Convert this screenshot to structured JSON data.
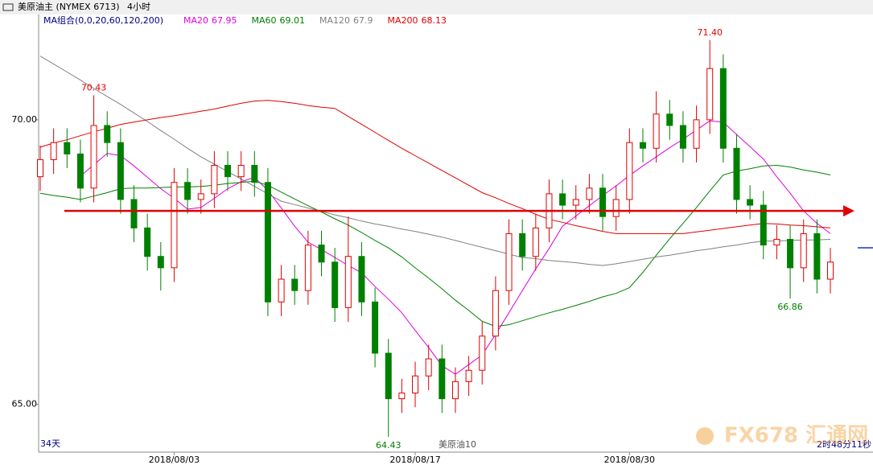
{
  "chart_data": {
    "type": "candlestick",
    "title": "美原油主 (NYMEX 6713)",
    "period": "4小时",
    "ma_group": "MA组合(0,0,20,60,120,200)",
    "days": "34天",
    "footer_name": "美原油10",
    "countdown": "2时48分11秒",
    "watermark": "FX678 汇通网",
    "ylim": [
      64.19,
      71.85
    ],
    "yticks": [
      {
        "value": 65,
        "label": "65.00"
      },
      {
        "value": 70,
        "label": "70.00"
      }
    ],
    "grid": false,
    "up_color": "#e00000",
    "down_color": "#008000",
    "categories": [
      null,
      null,
      null,
      null,
      null,
      null,
      null,
      null,
      null,
      null,
      "2018/08/03",
      null,
      null,
      null,
      null,
      null,
      null,
      null,
      null,
      null,
      null,
      null,
      null,
      null,
      null,
      null,
      null,
      null,
      "2018/08/17",
      null,
      null,
      null,
      null,
      null,
      null,
      null,
      null,
      null,
      null,
      null,
      null,
      null,
      null,
      null,
      "2018/08/30",
      null,
      null,
      null,
      null,
      null,
      null,
      null,
      null,
      null,
      null,
      null,
      null,
      null,
      null,
      null
    ],
    "open": [
      69.0,
      69.3,
      69.6,
      69.4,
      68.8,
      69.9,
      69.6,
      68.6,
      68.1,
      67.6,
      67.4,
      68.9,
      68.6,
      68.7,
      69.2,
      69.0,
      69.2,
      68.9,
      66.8,
      67.2,
      67.0,
      67.8,
      67.5,
      66.7,
      67.6,
      66.8,
      65.9,
      65.1,
      65.2,
      65.5,
      65.8,
      65.1,
      65.4,
      65.6,
      66.2,
      67.0,
      68.0,
      67.6,
      68.1,
      68.7,
      68.5,
      68.6,
      68.8,
      68.3,
      68.6,
      69.6,
      69.5,
      70.1,
      69.9,
      69.5,
      70.0,
      70.9,
      69.5,
      68.6,
      68.5,
      67.8,
      67.9,
      67.4,
      68.0,
      67.2
    ],
    "high": [
      69.55,
      69.85,
      69.85,
      69.65,
      70.43,
      70.15,
      69.85,
      68.85,
      68.35,
      67.85,
      69.15,
      69.15,
      68.95,
      69.45,
      69.45,
      69.45,
      69.45,
      69.15,
      67.45,
      67.45,
      68.05,
      68.05,
      67.75,
      68.3,
      67.85,
      67.05,
      66.15,
      65.45,
      65.75,
      66.05,
      66.05,
      65.65,
      65.85,
      66.45,
      67.25,
      68.25,
      68.25,
      68.35,
      68.95,
      68.95,
      68.85,
      69.05,
      69.05,
      68.85,
      69.85,
      69.85,
      70.5,
      70.35,
      70.15,
      70.25,
      71.4,
      71.15,
      69.75,
      68.85,
      68.75,
      68.15,
      68.15,
      68.25,
      68.25,
      67.75
    ],
    "low": [
      68.75,
      69.05,
      69.15,
      68.55,
      68.55,
      69.35,
      68.35,
      67.85,
      67.35,
      67.0,
      67.15,
      68.35,
      68.35,
      68.45,
      68.75,
      68.75,
      68.65,
      66.55,
      66.55,
      66.75,
      66.75,
      67.25,
      66.45,
      66.45,
      66.55,
      65.65,
      64.43,
      64.85,
      64.95,
      65.25,
      64.85,
      64.85,
      65.15,
      65.35,
      65.95,
      66.75,
      67.35,
      67.35,
      67.85,
      68.25,
      68.25,
      68.35,
      68.05,
      68.05,
      68.35,
      69.25,
      69.25,
      69.65,
      69.25,
      69.25,
      69.75,
      69.25,
      68.35,
      68.25,
      67.55,
      67.55,
      66.86,
      67.15,
      66.95,
      66.95
    ],
    "close": [
      69.3,
      69.6,
      69.4,
      68.8,
      69.9,
      69.6,
      68.6,
      68.1,
      67.6,
      67.4,
      68.9,
      68.6,
      68.7,
      69.2,
      69.0,
      69.2,
      68.9,
      66.8,
      67.2,
      67.0,
      67.8,
      67.5,
      66.7,
      67.6,
      66.8,
      65.9,
      65.1,
      65.2,
      65.5,
      65.8,
      65.1,
      65.4,
      65.6,
      66.2,
      67.0,
      68.0,
      67.6,
      68.1,
      68.7,
      68.5,
      68.6,
      68.8,
      68.3,
      68.6,
      69.6,
      69.5,
      70.1,
      69.9,
      69.5,
      70.0,
      70.9,
      69.5,
      68.6,
      68.5,
      67.8,
      67.9,
      67.4,
      68.0,
      67.2,
      67.5
    ],
    "high_labels": [
      null,
      null,
      null,
      null,
      "70.43",
      null,
      null,
      null,
      null,
      null,
      null,
      null,
      null,
      null,
      null,
      null,
      null,
      null,
      null,
      null,
      null,
      null,
      null,
      null,
      null,
      null,
      null,
      null,
      null,
      null,
      null,
      null,
      null,
      null,
      null,
      null,
      null,
      null,
      null,
      null,
      null,
      null,
      null,
      null,
      null,
      null,
      null,
      null,
      null,
      null,
      "71.40",
      null,
      null,
      null,
      null,
      null,
      null,
      null,
      null,
      null
    ],
    "low_labels": [
      null,
      null,
      null,
      null,
      null,
      null,
      null,
      null,
      null,
      null,
      null,
      null,
      null,
      null,
      null,
      null,
      null,
      null,
      null,
      null,
      null,
      null,
      null,
      null,
      null,
      null,
      "64.43",
      null,
      null,
      null,
      null,
      null,
      null,
      null,
      null,
      null,
      null,
      null,
      null,
      null,
      null,
      null,
      null,
      null,
      null,
      null,
      null,
      null,
      null,
      null,
      null,
      null,
      null,
      null,
      null,
      null,
      "66.86",
      null,
      null,
      null
    ],
    "reference_line": {
      "value": 68.4,
      "color": "#e00000"
    },
    "series": [
      {
        "name": "MA20",
        "current": 67.95,
        "color": "#e000e0",
        "values": [
          null,
          null,
          null,
          69.01,
          69.21,
          69.41,
          69.37,
          69.19,
          68.99,
          68.79,
          68.62,
          68.43,
          68.46,
          68.62,
          68.79,
          68.91,
          68.99,
          68.76,
          68.45,
          68.13,
          67.85,
          67.72,
          67.58,
          67.44,
          67.31,
          67.07,
          66.85,
          66.61,
          66.3,
          66.0,
          65.68,
          65.53,
          65.7,
          65.87,
          66.23,
          66.61,
          67.0,
          67.38,
          67.74,
          68.13,
          68.31,
          68.49,
          68.67,
          68.84,
          69.02,
          69.19,
          69.35,
          69.51,
          69.66,
          69.82,
          69.98,
          69.96,
          69.74,
          69.53,
          69.31,
          69.0,
          68.71,
          68.4,
          68.18,
          68.0
        ]
      },
      {
        "name": "MA60",
        "current": 69.01,
        "color": "#008000",
        "values": [
          68.71,
          68.67,
          68.64,
          68.6,
          68.66,
          68.72,
          68.79,
          68.8,
          68.8,
          68.81,
          68.82,
          68.82,
          68.83,
          68.85,
          68.88,
          68.9,
          68.92,
          68.85,
          68.73,
          68.61,
          68.49,
          68.38,
          68.26,
          68.15,
          68.02,
          67.88,
          67.75,
          67.59,
          67.4,
          67.22,
          67.03,
          66.83,
          66.65,
          66.46,
          66.37,
          66.4,
          66.47,
          66.54,
          66.61,
          66.67,
          66.74,
          66.81,
          66.89,
          66.95,
          67.05,
          67.32,
          67.62,
          67.91,
          68.18,
          68.46,
          68.75,
          69.03,
          69.1,
          69.14,
          69.19,
          69.2,
          69.17,
          69.12,
          69.08,
          69.03
        ]
      },
      {
        "name": "MA120",
        "current": 67.9,
        "color": "#808080",
        "values": [
          71.12,
          70.98,
          70.84,
          70.7,
          70.55,
          70.41,
          70.27,
          70.12,
          69.97,
          69.81,
          69.66,
          69.5,
          69.35,
          69.22,
          69.09,
          68.96,
          68.83,
          68.7,
          68.57,
          68.51,
          68.45,
          68.39,
          68.33,
          68.28,
          68.22,
          68.17,
          68.13,
          68.08,
          68.04,
          67.99,
          67.94,
          67.88,
          67.82,
          67.76,
          67.7,
          67.64,
          67.58,
          67.56,
          67.53,
          67.51,
          67.49,
          67.46,
          67.44,
          67.47,
          67.51,
          67.55,
          67.59,
          67.62,
          67.66,
          67.7,
          67.73,
          67.77,
          67.8,
          67.84,
          67.87,
          67.87,
          67.88,
          67.89,
          67.89,
          67.9
        ]
      },
      {
        "name": "MA200",
        "current": 68.13,
        "color": "#e00000",
        "values": [
          69.52,
          69.59,
          69.65,
          69.72,
          69.79,
          69.85,
          69.92,
          69.96,
          70.0,
          70.04,
          70.07,
          70.11,
          70.15,
          70.19,
          70.24,
          70.29,
          70.33,
          70.34,
          70.32,
          70.29,
          70.25,
          70.22,
          70.2,
          70.06,
          69.92,
          69.78,
          69.64,
          69.5,
          69.37,
          69.24,
          69.11,
          68.98,
          68.85,
          68.72,
          68.63,
          68.53,
          68.44,
          68.34,
          68.25,
          68.2,
          68.14,
          68.09,
          68.04,
          68.0,
          68.0,
          68.0,
          68.0,
          68.0,
          68.0,
          68.03,
          68.06,
          68.09,
          68.12,
          68.15,
          68.18,
          68.17,
          68.15,
          68.14,
          68.12,
          68.1
        ]
      }
    ]
  }
}
